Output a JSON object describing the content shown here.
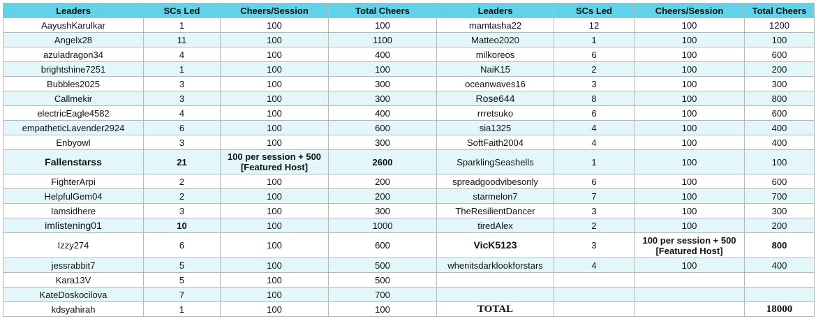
{
  "headers": [
    "Leaders",
    "SCs Led",
    "Cheers/Session",
    "Total Cheers",
    "Leaders",
    "SCs Led",
    "Cheers/Session",
    "Total Cheers"
  ],
  "rows": [
    [
      "AayushKarulkar",
      1,
      100,
      100,
      "mamtasha22",
      12,
      100,
      1200
    ],
    [
      "Angelx28",
      11,
      100,
      1100,
      "Matteo2020",
      1,
      100,
      100
    ],
    [
      "azuladragon34",
      4,
      100,
      400,
      "milkoreos",
      6,
      100,
      600
    ],
    [
      "brightshine7251",
      1,
      100,
      100,
      "NaiK15",
      2,
      100,
      200
    ],
    [
      "Bubbles2025",
      3,
      100,
      300,
      "oceanwaves16",
      3,
      100,
      300
    ],
    [
      "Callmekir",
      3,
      100,
      300,
      "Rose644",
      8,
      100,
      800
    ],
    [
      "electricEagle4582",
      4,
      100,
      400,
      "rrretsuko",
      6,
      100,
      600
    ],
    [
      "empatheticLavender2924",
      6,
      100,
      600,
      "sia1325",
      4,
      100,
      400
    ],
    [
      "Enbyowl",
      3,
      100,
      300,
      "SoftFaith2004",
      4,
      100,
      400
    ],
    [
      "Fallenstarss",
      21,
      "100 per session + 500\n[Featured Host]",
      2600,
      "SparklingSeashells",
      1,
      100,
      100
    ],
    [
      "FighterArpi",
      2,
      100,
      200,
      "spreadgoodvibesonly",
      6,
      100,
      600
    ],
    [
      "HelpfulGem04",
      2,
      100,
      200,
      "starmelon7",
      7,
      100,
      700
    ],
    [
      "Iamsidhere",
      3,
      100,
      300,
      "TheResilientDancer",
      3,
      100,
      300
    ],
    [
      "imlistening01",
      10,
      100,
      1000,
      "tiredAlex",
      2,
      100,
      200
    ],
    [
      "Izzy274",
      6,
      100,
      600,
      "VicK5123",
      3,
      "100 per session + 500\n[Featured Host]",
      800
    ],
    [
      "jessrabbit7",
      5,
      100,
      500,
      "whenitsdarklookforstars",
      4,
      100,
      400
    ],
    [
      "Kara13V",
      5,
      100,
      500,
      null,
      null,
      null,
      null
    ],
    [
      "KateDoskocilova",
      7,
      100,
      700,
      null,
      null,
      null,
      null
    ],
    [
      "kdsyahirah",
      1,
      100,
      100,
      "TOTAL",
      null,
      null,
      18000
    ]
  ]
}
